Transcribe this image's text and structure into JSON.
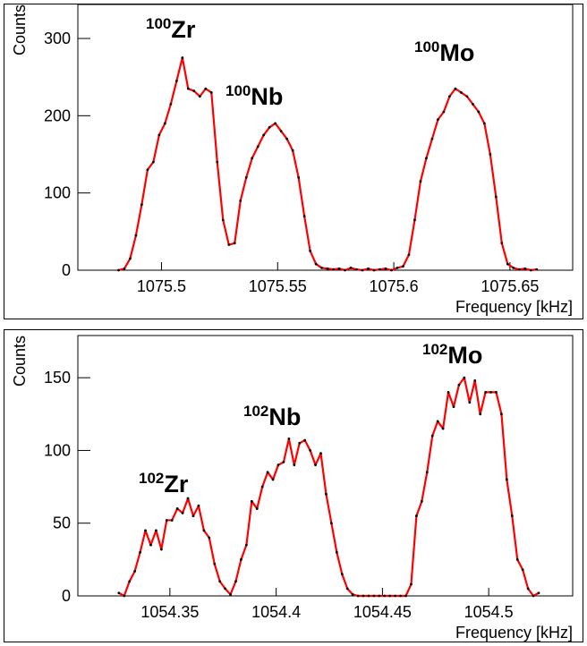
{
  "chart_data": [
    {
      "type": "line",
      "x": [
        1075.4815,
        1075.484,
        1075.4865,
        1075.489,
        1075.4915,
        1075.494,
        1075.4965,
        1075.499,
        1075.5015,
        1075.504,
        1075.5065,
        1075.509,
        1075.5115,
        1075.514,
        1075.5165,
        1075.519,
        1075.5215,
        1075.524,
        1075.5265,
        1075.529,
        1075.5315,
        1075.534,
        1075.5365,
        1075.539,
        1075.5415,
        1075.544,
        1075.5465,
        1075.549,
        1075.5515,
        1075.554,
        1075.5565,
        1075.559,
        1075.5615,
        1075.564,
        1075.5665,
        1075.569,
        1075.5715,
        1075.574,
        1075.5765,
        1075.579,
        1075.5815,
        1075.584,
        1075.5865,
        1075.589,
        1075.5915,
        1075.594,
        1075.5965,
        1075.599,
        1075.6015,
        1075.604,
        1075.6065,
        1075.609,
        1075.6115,
        1075.614,
        1075.6165,
        1075.619,
        1075.6215,
        1075.624,
        1075.6265,
        1075.629,
        1075.6315,
        1075.634,
        1075.6365,
        1075.639,
        1075.6415,
        1075.644,
        1075.6465,
        1075.649,
        1075.6515,
        1075.654,
        1075.6565,
        1075.659,
        1075.6615
      ],
      "values": [
        0,
        2,
        15,
        45,
        85,
        130,
        140,
        175,
        190,
        215,
        245,
        275,
        235,
        232,
        225,
        235,
        230,
        140,
        65,
        33,
        35,
        90,
        120,
        145,
        160,
        175,
        185,
        190,
        180,
        170,
        155,
        120,
        70,
        25,
        8,
        3,
        2,
        1,
        2,
        0,
        3,
        1,
        0,
        2,
        0,
        1,
        2,
        0,
        3,
        5,
        20,
        65,
        115,
        145,
        170,
        195,
        205,
        225,
        235,
        230,
        225,
        215,
        205,
        190,
        150,
        95,
        35,
        8,
        3,
        1,
        2,
        0,
        1
      ],
      "color": "#ff0000",
      "marker_color": "#000000",
      "xlim": [
        1075.464,
        1075.677
      ],
      "ylim": [
        0,
        344
      ],
      "xticks": [
        1075.5,
        1075.55,
        1075.6,
        1075.65
      ],
      "yticks": [
        0,
        100,
        200,
        300
      ],
      "x_label": "Frequency [kHz]",
      "y_label": "Counts",
      "annotations": [
        {
          "mass": "100",
          "symbol": "Zr"
        },
        {
          "mass": "100",
          "symbol": "Nb"
        },
        {
          "mass": "100",
          "symbol": "Mo"
        }
      ]
    },
    {
      "type": "line",
      "x": [
        1054.326,
        1054.3285,
        1054.331,
        1054.3335,
        1054.336,
        1054.3385,
        1054.341,
        1054.3435,
        1054.346,
        1054.3485,
        1054.351,
        1054.3535,
        1054.356,
        1054.3585,
        1054.361,
        1054.3635,
        1054.366,
        1054.3685,
        1054.371,
        1054.3735,
        1054.376,
        1054.3785,
        1054.381,
        1054.3835,
        1054.386,
        1054.3885,
        1054.391,
        1054.3935,
        1054.396,
        1054.3985,
        1054.401,
        1054.4035,
        1054.406,
        1054.4085,
        1054.411,
        1054.4135,
        1054.416,
        1054.4185,
        1054.421,
        1054.4235,
        1054.426,
        1054.4285,
        1054.431,
        1054.4335,
        1054.436,
        1054.4385,
        1054.441,
        1054.4435,
        1054.446,
        1054.4485,
        1054.451,
        1054.4535,
        1054.456,
        1054.4585,
        1054.461,
        1054.4635,
        1054.466,
        1054.4685,
        1054.471,
        1054.4735,
        1054.476,
        1054.4785,
        1054.481,
        1054.4835,
        1054.486,
        1054.4885,
        1054.491,
        1054.4935,
        1054.496,
        1054.4985,
        1054.501,
        1054.5035,
        1054.506,
        1054.5085,
        1054.511,
        1054.5135,
        1054.516,
        1054.5185,
        1054.521,
        1054.5235
      ],
      "values": [
        2,
        0,
        10,
        17,
        30,
        45,
        35,
        45,
        32,
        52,
        52,
        60,
        57,
        67,
        55,
        62,
        45,
        40,
        22,
        10,
        5,
        1,
        10,
        25,
        35,
        65,
        60,
        75,
        85,
        80,
        90,
        92,
        108,
        90,
        105,
        107,
        100,
        90,
        98,
        70,
        50,
        30,
        15,
        5,
        1,
        0,
        0,
        0,
        0,
        0,
        0,
        0,
        0,
        0,
        0,
        8,
        55,
        65,
        85,
        110,
        120,
        115,
        140,
        130,
        145,
        150,
        133,
        148,
        125,
        140,
        140,
        140,
        125,
        80,
        55,
        25,
        18,
        5,
        0,
        2
      ],
      "color": "#ff0000",
      "marker_color": "#000000",
      "xlim": [
        1054.3067,
        1054.5395
      ],
      "ylim": [
        0,
        179
      ],
      "xticks": [
        1054.35,
        1054.4,
        1054.45,
        1054.5
      ],
      "yticks": [
        0,
        50,
        100,
        150
      ],
      "x_label": "Frequency [kHz]",
      "y_label": "Counts",
      "annotations": [
        {
          "mass": "102",
          "symbol": "Zr"
        },
        {
          "mass": "102",
          "symbol": "Nb"
        },
        {
          "mass": "102",
          "symbol": "Mo"
        }
      ]
    }
  ]
}
